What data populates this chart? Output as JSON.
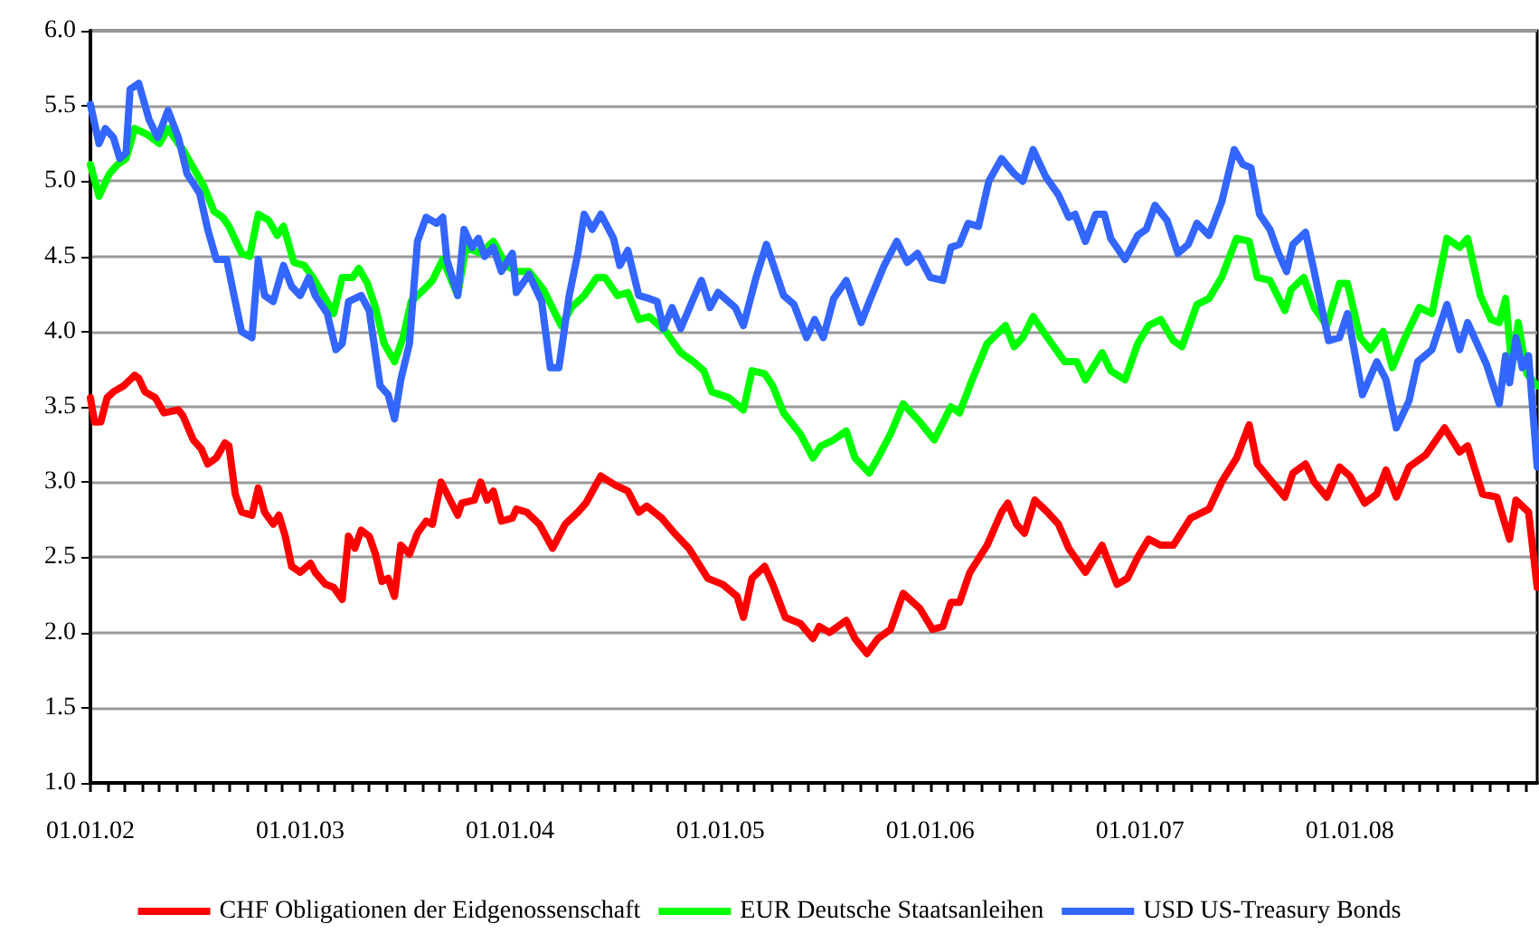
{
  "chart_data": {
    "type": "line",
    "legend": "bottom",
    "grid": "y",
    "marker": "none",
    "line_style": "solid",
    "xlim": [
      "2002-01-01",
      "2008-11-22"
    ],
    "ylim": [
      1,
      6
    ],
    "yticks": [
      {
        "value": 1,
        "label": "1.0"
      },
      {
        "value": 1.5,
        "label": "1.5"
      },
      {
        "value": 2,
        "label": "2.0"
      },
      {
        "value": 2.5,
        "label": "2.5"
      },
      {
        "value": 3,
        "label": "3.0"
      },
      {
        "value": 3.5,
        "label": "3.5"
      },
      {
        "value": 4,
        "label": "4.0"
      },
      {
        "value": 4.5,
        "label": "4.5"
      },
      {
        "value": 5,
        "label": "5.0"
      },
      {
        "value": 5.5,
        "label": "5.5"
      },
      {
        "value": 6,
        "label": "6.0"
      }
    ],
    "xticks": [
      {
        "value": "2002-01-01",
        "label": "01.01.02"
      },
      {
        "value": "2002-02-01",
        "label": null
      },
      {
        "value": "2002-03-01",
        "label": null
      },
      {
        "value": "2002-04-01",
        "label": null
      },
      {
        "value": "2002-05-01",
        "label": null
      },
      {
        "value": "2002-06-01",
        "label": null
      },
      {
        "value": "2002-07-01",
        "label": null
      },
      {
        "value": "2002-08-01",
        "label": null
      },
      {
        "value": "2002-09-01",
        "label": null
      },
      {
        "value": "2002-10-01",
        "label": null
      },
      {
        "value": "2002-11-01",
        "label": null
      },
      {
        "value": "2002-12-01",
        "label": null
      },
      {
        "value": "2003-01-01",
        "label": "01.01.03"
      },
      {
        "value": "2003-02-01",
        "label": null
      },
      {
        "value": "2003-03-01",
        "label": null
      },
      {
        "value": "2003-04-01",
        "label": null
      },
      {
        "value": "2003-05-01",
        "label": null
      },
      {
        "value": "2003-06-01",
        "label": null
      },
      {
        "value": "2003-07-01",
        "label": null
      },
      {
        "value": "2003-08-01",
        "label": null
      },
      {
        "value": "2003-09-01",
        "label": null
      },
      {
        "value": "2003-10-01",
        "label": null
      },
      {
        "value": "2003-11-01",
        "label": null
      },
      {
        "value": "2003-12-01",
        "label": null
      },
      {
        "value": "2004-01-01",
        "label": "01.01.04"
      },
      {
        "value": "2004-02-01",
        "label": null
      },
      {
        "value": "2004-03-01",
        "label": null
      },
      {
        "value": "2004-04-01",
        "label": null
      },
      {
        "value": "2004-05-01",
        "label": null
      },
      {
        "value": "2004-06-01",
        "label": null
      },
      {
        "value": "2004-07-01",
        "label": null
      },
      {
        "value": "2004-08-01",
        "label": null
      },
      {
        "value": "2004-09-01",
        "label": null
      },
      {
        "value": "2004-10-01",
        "label": null
      },
      {
        "value": "2004-11-01",
        "label": null
      },
      {
        "value": "2004-12-01",
        "label": null
      },
      {
        "value": "2005-01-01",
        "label": "01.01.05"
      },
      {
        "value": "2005-02-01",
        "label": null
      },
      {
        "value": "2005-03-01",
        "label": null
      },
      {
        "value": "2005-04-01",
        "label": null
      },
      {
        "value": "2005-05-01",
        "label": null
      },
      {
        "value": "2005-06-01",
        "label": null
      },
      {
        "value": "2005-07-01",
        "label": null
      },
      {
        "value": "2005-08-01",
        "label": null
      },
      {
        "value": "2005-09-01",
        "label": null
      },
      {
        "value": "2005-10-01",
        "label": null
      },
      {
        "value": "2005-11-01",
        "label": null
      },
      {
        "value": "2005-12-01",
        "label": null
      },
      {
        "value": "2006-01-01",
        "label": "01.01.06"
      },
      {
        "value": "2006-02-01",
        "label": null
      },
      {
        "value": "2006-03-01",
        "label": null
      },
      {
        "value": "2006-04-01",
        "label": null
      },
      {
        "value": "2006-05-01",
        "label": null
      },
      {
        "value": "2006-06-01",
        "label": null
      },
      {
        "value": "2006-07-01",
        "label": null
      },
      {
        "value": "2006-08-01",
        "label": null
      },
      {
        "value": "2006-09-01",
        "label": null
      },
      {
        "value": "2006-10-01",
        "label": null
      },
      {
        "value": "2006-11-01",
        "label": null
      },
      {
        "value": "2006-12-01",
        "label": null
      },
      {
        "value": "2007-01-01",
        "label": "01.01.07"
      },
      {
        "value": "2007-02-01",
        "label": null
      },
      {
        "value": "2007-03-01",
        "label": null
      },
      {
        "value": "2007-04-01",
        "label": null
      },
      {
        "value": "2007-05-01",
        "label": null
      },
      {
        "value": "2007-06-01",
        "label": null
      },
      {
        "value": "2007-07-01",
        "label": null
      },
      {
        "value": "2007-08-01",
        "label": null
      },
      {
        "value": "2007-09-01",
        "label": null
      },
      {
        "value": "2007-10-01",
        "label": null
      },
      {
        "value": "2007-11-01",
        "label": null
      },
      {
        "value": "2007-12-01",
        "label": null
      },
      {
        "value": "2008-01-01",
        "label": "01.01.08"
      },
      {
        "value": "2008-02-01",
        "label": null
      },
      {
        "value": "2008-03-01",
        "label": null
      },
      {
        "value": "2008-04-01",
        "label": null
      },
      {
        "value": "2008-05-01",
        "label": null
      },
      {
        "value": "2008-06-01",
        "label": null
      },
      {
        "value": "2008-07-01",
        "label": null
      },
      {
        "value": "2008-08-01",
        "label": null
      },
      {
        "value": "2008-09-01",
        "label": null
      },
      {
        "value": "2008-10-01",
        "label": null
      },
      {
        "value": "2008-11-01",
        "label": null
      }
    ],
    "series": [
      {
        "name": "CHF Obligationen der Eidgenossenschaft",
        "color": "#ff0000",
        "x": [
          "2002-01-01",
          "2002-01-08",
          "2002-01-19",
          "2002-01-30",
          "2002-02-10",
          "2002-02-28",
          "2002-03-19",
          "2002-03-26",
          "2002-04-06",
          "2002-04-24",
          "2002-05-09",
          "2002-06-03",
          "2002-06-11",
          "2002-06-29",
          "2002-07-13",
          "2002-07-24",
          "2002-08-08",
          "2002-08-23",
          "2002-08-30",
          "2002-09-10",
          "2002-09-21",
          "2002-10-09",
          "2002-10-20",
          "2002-10-31",
          "2002-11-15",
          "2002-11-25",
          "2002-12-06",
          "2002-12-17",
          "2003-01-01",
          "2003-01-19",
          "2003-01-27",
          "2003-02-14",
          "2003-02-28",
          "2003-03-15",
          "2003-03-26",
          "2003-04-06",
          "2003-04-17",
          "2003-05-01",
          "2003-05-12",
          "2003-05-23",
          "2003-06-03",
          "2003-06-14",
          "2003-06-25",
          "2003-07-10",
          "2003-07-24",
          "2003-08-08",
          "2003-08-19",
          "2003-09-03",
          "2003-10-02",
          "2003-10-09",
          "2003-10-31",
          "2003-11-11",
          "2003-11-22",
          "2003-12-03",
          "2003-12-17",
          "2004-01-05",
          "2004-01-12",
          "2004-01-30",
          "2004-02-21",
          "2004-03-15",
          "2004-04-06",
          "2004-04-28",
          "2004-05-12",
          "2004-06-07",
          "2004-07-02",
          "2004-07-24",
          "2004-08-12",
          "2004-08-26",
          "2004-09-21",
          "2004-10-13",
          "2004-11-07",
          "2004-12-10",
          "2005-01-05",
          "2005-01-30",
          "2005-02-10",
          "2005-02-25",
          "2005-03-19",
          "2005-04-02",
          "2005-04-24",
          "2005-05-20",
          "2005-06-11",
          "2005-06-22",
          "2005-07-10",
          "2005-08-08",
          "2005-08-23",
          "2005-09-13",
          "2005-10-02",
          "2005-10-24",
          "2005-11-15",
          "2005-12-14",
          "2006-01-05",
          "2006-01-23",
          "2006-02-06",
          "2006-02-21",
          "2006-03-11",
          "2006-04-10",
          "2006-05-05",
          "2006-05-16",
          "2006-05-31",
          "2006-06-14",
          "2006-07-02",
          "2006-07-24",
          "2006-08-12",
          "2006-08-30",
          "2006-09-28",
          "2006-10-27",
          "2006-11-22",
          "2006-12-10",
          "2006-12-28",
          "2007-01-16",
          "2007-02-06",
          "2007-02-28",
          "2007-03-30",
          "2007-05-01",
          "2007-05-23",
          "2007-06-18",
          "2007-07-10",
          "2007-07-24",
          "2007-08-19",
          "2007-09-10",
          "2007-09-24",
          "2007-10-16",
          "2007-10-31",
          "2007-11-22",
          "2007-12-14",
          "2008-01-01",
          "2008-01-27",
          "2008-02-17",
          "2008-03-04",
          "2008-03-22",
          "2008-04-13",
          "2008-05-12",
          "2008-06-14",
          "2008-07-10",
          "2008-07-24",
          "2008-08-19",
          "2008-09-13",
          "2008-10-05",
          "2008-10-16",
          "2008-11-07",
          "2008-11-22"
        ],
        "values": [
          3.56,
          3.4,
          3.4,
          3.56,
          3.6,
          3.64,
          3.71,
          3.69,
          3.6,
          3.56,
          3.46,
          3.48,
          3.44,
          3.28,
          3.22,
          3.12,
          3.16,
          3.26,
          3.24,
          2.92,
          2.8,
          2.78,
          2.96,
          2.8,
          2.72,
          2.78,
          2.64,
          2.44,
          2.4,
          2.46,
          2.4,
          2.32,
          2.3,
          2.22,
          2.64,
          2.56,
          2.68,
          2.64,
          2.52,
          2.34,
          2.36,
          2.24,
          2.58,
          2.52,
          2.66,
          2.74,
          2.72,
          3.0,
          2.78,
          2.86,
          2.88,
          3.0,
          2.88,
          2.94,
          2.74,
          2.76,
          2.82,
          2.8,
          2.72,
          2.56,
          2.72,
          2.8,
          2.86,
          3.04,
          2.98,
          2.94,
          2.8,
          2.84,
          2.76,
          2.66,
          2.56,
          2.36,
          2.32,
          2.24,
          2.1,
          2.36,
          2.44,
          2.32,
          2.1,
          2.06,
          1.96,
          2.04,
          2.0,
          2.08,
          1.96,
          1.86,
          1.96,
          2.02,
          2.26,
          2.16,
          2.02,
          2.04,
          2.2,
          2.2,
          2.4,
          2.58,
          2.8,
          2.86,
          2.72,
          2.66,
          2.88,
          2.8,
          2.72,
          2.56,
          2.4,
          2.58,
          2.32,
          2.36,
          2.5,
          2.62,
          2.58,
          2.58,
          2.76,
          2.82,
          3.0,
          3.16,
          3.38,
          3.12,
          3.0,
          2.9,
          3.06,
          3.12,
          3.0,
          2.9,
          3.1,
          3.04,
          2.86,
          2.92,
          3.08,
          2.9,
          3.1,
          3.18,
          3.36,
          3.2,
          3.24,
          2.92,
          2.9,
          2.62,
          2.88,
          2.8,
          2.3
        ]
      },
      {
        "name": "EUR Deutsche Staatsanleihen",
        "color": "#00ff00",
        "x": [
          "2002-01-01",
          "2002-01-16",
          "2002-02-03",
          "2002-02-17",
          "2002-03-04",
          "2002-03-19",
          "2002-04-10",
          "2002-05-01",
          "2002-05-16",
          "2002-06-03",
          "2002-06-11",
          "2002-06-29",
          "2002-07-17",
          "2002-08-04",
          "2002-08-19",
          "2002-08-30",
          "2002-09-21",
          "2002-10-05",
          "2002-10-20",
          "2002-11-07",
          "2002-11-22",
          "2002-12-03",
          "2002-12-21",
          "2003-01-08",
          "2003-01-23",
          "2003-02-14",
          "2003-02-28",
          "2003-03-15",
          "2003-04-02",
          "2003-04-13",
          "2003-04-28",
          "2003-05-12",
          "2003-05-27",
          "2003-06-14",
          "2003-06-29",
          "2003-07-13",
          "2003-08-04",
          "2003-08-19",
          "2003-09-06",
          "2003-10-02",
          "2003-10-16",
          "2003-11-11",
          "2003-12-03",
          "2003-12-25",
          "2004-01-12",
          "2004-02-03",
          "2004-02-28",
          "2004-03-30",
          "2004-04-17",
          "2004-05-09",
          "2004-05-31",
          "2004-06-14",
          "2004-07-06",
          "2004-07-24",
          "2004-08-12",
          "2004-08-30",
          "2004-09-28",
          "2004-10-24",
          "2004-11-15",
          "2004-12-03",
          "2004-12-17",
          "2005-01-16",
          "2005-02-10",
          "2005-02-25",
          "2005-03-19",
          "2005-04-02",
          "2005-04-21",
          "2005-05-20",
          "2005-06-11",
          "2005-06-25",
          "2005-07-17",
          "2005-08-08",
          "2005-08-23",
          "2005-09-17",
          "2005-10-02",
          "2005-10-24",
          "2005-11-15",
          "2005-12-14",
          "2006-01-08",
          "2006-02-06",
          "2006-02-21",
          "2006-03-15",
          "2006-04-10",
          "2006-05-12",
          "2006-05-27",
          "2006-06-11",
          "2006-06-29",
          "2006-07-24",
          "2006-08-23",
          "2006-09-13",
          "2006-09-28",
          "2006-10-27",
          "2006-11-11",
          "2006-12-06",
          "2006-12-28",
          "2007-01-16",
          "2007-02-06",
          "2007-02-28",
          "2007-03-15",
          "2007-04-10",
          "2007-05-01",
          "2007-05-23",
          "2007-06-18",
          "2007-07-10",
          "2007-07-24",
          "2007-08-15",
          "2007-09-10",
          "2007-09-21",
          "2007-10-13",
          "2007-10-31",
          "2007-11-22",
          "2007-12-14",
          "2007-12-28",
          "2008-01-19",
          "2008-02-06",
          "2008-02-28",
          "2008-03-15",
          "2008-04-06",
          "2008-05-01",
          "2008-05-23",
          "2008-06-18",
          "2008-07-10",
          "2008-07-24",
          "2008-08-15",
          "2008-09-03",
          "2008-09-17",
          "2008-09-28",
          "2008-10-09",
          "2008-10-20",
          "2008-11-04",
          "2008-11-22"
        ],
        "values": [
          5.11,
          4.9,
          5.05,
          5.11,
          5.15,
          5.35,
          5.31,
          5.25,
          5.35,
          5.25,
          5.21,
          5.09,
          4.97,
          4.8,
          4.76,
          4.7,
          4.52,
          4.5,
          4.78,
          4.74,
          4.64,
          4.7,
          4.46,
          4.44,
          4.36,
          4.22,
          4.12,
          4.36,
          4.36,
          4.42,
          4.32,
          4.16,
          3.92,
          3.8,
          3.96,
          4.2,
          4.28,
          4.34,
          4.48,
          4.24,
          4.56,
          4.52,
          4.6,
          4.44,
          4.4,
          4.4,
          4.28,
          4.04,
          4.16,
          4.24,
          4.36,
          4.36,
          4.24,
          4.26,
          4.08,
          4.1,
          4.0,
          3.86,
          3.8,
          3.74,
          3.6,
          3.56,
          3.48,
          3.74,
          3.72,
          3.64,
          3.46,
          3.32,
          3.16,
          3.24,
          3.28,
          3.34,
          3.16,
          3.06,
          3.16,
          3.32,
          3.52,
          3.4,
          3.28,
          3.5,
          3.46,
          3.68,
          3.92,
          4.04,
          3.9,
          3.96,
          4.1,
          3.96,
          3.8,
          3.8,
          3.68,
          3.86,
          3.74,
          3.68,
          3.92,
          4.04,
          4.08,
          3.94,
          3.9,
          4.18,
          4.22,
          4.36,
          4.62,
          4.6,
          4.36,
          4.34,
          4.14,
          4.28,
          4.36,
          4.16,
          4.04,
          4.32,
          4.32,
          3.96,
          3.88,
          4.0,
          3.76,
          3.96,
          4.16,
          4.12,
          4.62,
          4.56,
          4.62,
          4.24,
          4.08,
          4.06,
          4.22,
          3.76,
          4.06,
          3.72,
          3.64
        ]
      },
      {
        "name": "USD US-Treasury Bonds",
        "color": "#3366ff",
        "x": [
          "2002-01-01",
          "2002-01-16",
          "2002-01-27",
          "2002-02-10",
          "2002-02-21",
          "2002-03-04",
          "2002-03-11",
          "2002-03-26",
          "2002-04-13",
          "2002-04-28",
          "2002-05-16",
          "2002-06-03",
          "2002-06-18",
          "2002-07-10",
          "2002-07-24",
          "2002-08-08",
          "2002-08-26",
          "2002-09-10",
          "2002-09-21",
          "2002-10-09",
          "2002-10-20",
          "2002-10-31",
          "2002-11-15",
          "2002-12-03",
          "2002-12-17",
          "2003-01-01",
          "2003-01-16",
          "2003-01-27",
          "2003-02-17",
          "2003-03-04",
          "2003-03-15",
          "2003-03-26",
          "2003-04-17",
          "2003-05-01",
          "2003-05-20",
          "2003-06-03",
          "2003-06-14",
          "2003-06-25",
          "2003-07-10",
          "2003-07-24",
          "2003-08-08",
          "2003-08-26",
          "2003-09-06",
          "2003-09-13",
          "2003-10-02",
          "2003-10-13",
          "2003-10-27",
          "2003-11-07",
          "2003-11-18",
          "2003-12-03",
          "2003-12-17",
          "2004-01-05",
          "2004-01-12",
          "2004-02-03",
          "2004-02-25",
          "2004-03-11",
          "2004-03-26",
          "2004-04-13",
          "2004-04-28",
          "2004-05-09",
          "2004-05-23",
          "2004-06-07",
          "2004-06-29",
          "2004-07-10",
          "2004-07-24",
          "2004-08-12",
          "2004-08-30",
          "2004-09-13",
          "2004-09-24",
          "2004-10-09",
          "2004-10-24",
          "2004-11-15",
          "2004-11-29",
          "2004-12-14",
          "2004-12-28",
          "2005-01-27",
          "2005-02-10",
          "2005-03-04",
          "2005-03-22",
          "2005-04-21",
          "2005-05-09",
          "2005-05-31",
          "2005-06-14",
          "2005-06-29",
          "2005-07-17",
          "2005-08-08",
          "2005-09-03",
          "2005-09-17",
          "2005-10-13",
          "2005-11-04",
          "2005-11-22",
          "2005-12-10",
          "2006-01-01",
          "2006-01-23",
          "2006-02-06",
          "2006-02-21",
          "2006-03-08",
          "2006-03-26",
          "2006-04-13",
          "2006-05-05",
          "2006-05-27",
          "2006-06-11",
          "2006-06-29",
          "2006-07-21",
          "2006-08-12",
          "2006-08-30",
          "2006-09-10",
          "2006-09-28",
          "2006-10-16",
          "2006-10-31",
          "2006-11-11",
          "2006-12-06",
          "2006-12-28",
          "2007-01-12",
          "2007-01-27",
          "2007-02-17",
          "2007-03-08",
          "2007-03-26",
          "2007-04-10",
          "2007-05-01",
          "2007-05-23",
          "2007-06-14",
          "2007-06-29",
          "2007-07-13",
          "2007-07-28",
          "2007-08-15",
          "2007-08-30",
          "2007-09-13",
          "2007-09-24",
          "2007-10-16",
          "2007-10-31",
          "2007-11-25",
          "2007-12-14",
          "2007-12-28",
          "2008-01-23",
          "2008-02-17",
          "2008-03-04",
          "2008-03-22",
          "2008-04-13",
          "2008-04-28",
          "2008-05-23",
          "2008-06-18",
          "2008-07-10",
          "2008-07-24",
          "2008-08-26",
          "2008-09-17",
          "2008-09-28",
          "2008-10-05",
          "2008-10-16",
          "2008-10-27",
          "2008-11-07",
          "2008-11-22"
        ],
        "values": [
          5.51,
          5.25,
          5.35,
          5.29,
          5.15,
          5.19,
          5.61,
          5.65,
          5.41,
          5.29,
          5.47,
          5.29,
          5.05,
          4.92,
          4.68,
          4.48,
          4.48,
          4.2,
          4.0,
          3.96,
          4.48,
          4.24,
          4.2,
          4.44,
          4.3,
          4.24,
          4.36,
          4.24,
          4.12,
          3.88,
          3.92,
          4.2,
          4.24,
          4.14,
          3.64,
          3.58,
          3.42,
          3.68,
          3.92,
          4.6,
          4.76,
          4.72,
          4.76,
          4.48,
          4.24,
          4.68,
          4.56,
          4.62,
          4.5,
          4.56,
          4.4,
          4.52,
          4.26,
          4.38,
          4.2,
          3.76,
          3.76,
          4.24,
          4.52,
          4.78,
          4.68,
          4.78,
          4.62,
          4.44,
          4.54,
          4.24,
          4.22,
          4.2,
          4.02,
          4.16,
          4.02,
          4.22,
          4.34,
          4.16,
          4.26,
          4.16,
          4.04,
          4.36,
          4.58,
          4.24,
          4.18,
          3.96,
          4.08,
          3.96,
          4.22,
          4.34,
          4.06,
          4.2,
          4.44,
          4.6,
          4.46,
          4.52,
          4.36,
          4.34,
          4.56,
          4.58,
          4.72,
          4.7,
          5.0,
          5.15,
          5.05,
          5.0,
          5.21,
          5.03,
          4.91,
          4.76,
          4.78,
          4.6,
          4.78,
          4.78,
          4.62,
          4.48,
          4.64,
          4.68,
          4.84,
          4.74,
          4.52,
          4.58,
          4.72,
          4.64,
          4.86,
          5.21,
          5.11,
          5.09,
          4.78,
          4.68,
          4.52,
          4.4,
          4.58,
          4.66,
          4.4,
          3.94,
          3.96,
          4.12,
          3.58,
          3.8,
          3.68,
          3.36,
          3.54,
          3.8,
          3.88,
          4.18,
          3.88,
          4.06,
          3.78,
          3.52,
          3.84,
          3.66,
          3.96,
          3.76,
          3.84,
          3.1
        ]
      }
    ]
  }
}
